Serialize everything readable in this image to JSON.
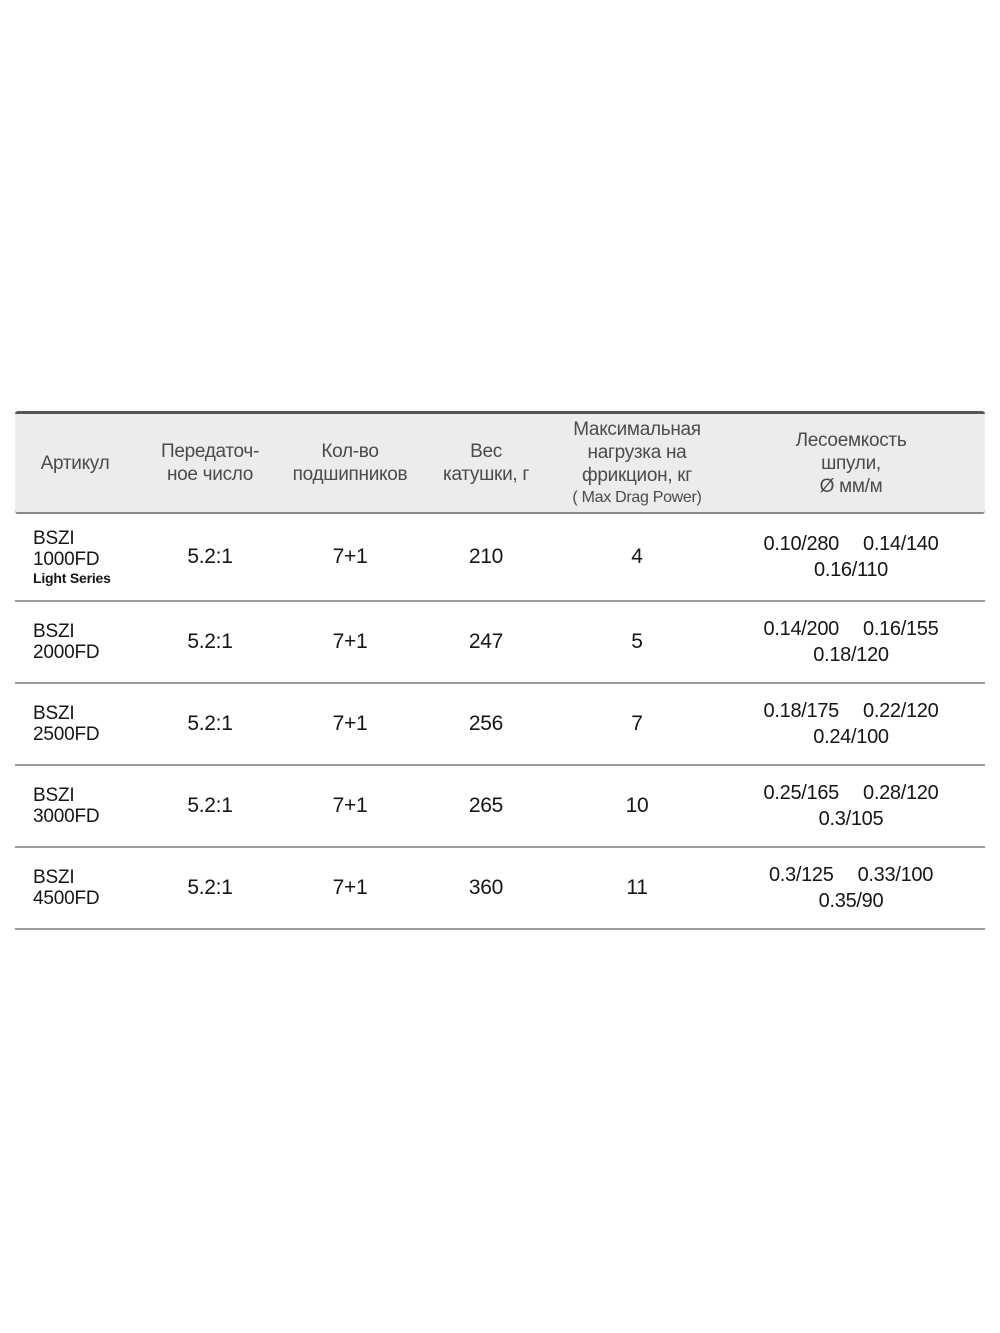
{
  "colors": {
    "page_background": "#ffffff",
    "header_background": "#edecec",
    "header_text": "#4b4b4b",
    "body_text": "#161616",
    "table_top_border": "#55555a",
    "header_bottom_border": "#8a8a8a",
    "row_separator": "#9d9d9d"
  },
  "table": {
    "header": {
      "article": [
        "Артикул"
      ],
      "gear_ratio": [
        "Передаточ-",
        "ное число"
      ],
      "bearings": [
        "Кол-во",
        "подшипников"
      ],
      "weight": [
        "Вес",
        "катушки, г"
      ],
      "max_drag": [
        "Максимальная",
        "нагрузка на",
        "фрикцион, кг"
      ],
      "max_drag_sub": "( Max Drag Power)",
      "capacity": [
        "Лесоемкость",
        "шпули,",
        "Ø мм/м"
      ]
    },
    "rows": [
      {
        "article": [
          "BSZI",
          "1000FD"
        ],
        "note": "Light Series",
        "gear_ratio": "5.2:1",
        "bearings": "7+1",
        "weight": "210",
        "max_drag": "4",
        "capacity_line1": [
          "0.10/280",
          "0.14/140"
        ],
        "capacity_line2": "0.16/110"
      },
      {
        "article": [
          "BSZI",
          "2000FD"
        ],
        "note": "",
        "gear_ratio": "5.2:1",
        "bearings": "7+1",
        "weight": "247",
        "max_drag": "5",
        "capacity_line1": [
          "0.14/200",
          "0.16/155"
        ],
        "capacity_line2": "0.18/120"
      },
      {
        "article": [
          "BSZI",
          "2500FD"
        ],
        "note": "",
        "gear_ratio": "5.2:1",
        "bearings": "7+1",
        "weight": "256",
        "max_drag": "7",
        "capacity_line1": [
          "0.18/175",
          "0.22/120"
        ],
        "capacity_line2": "0.24/100"
      },
      {
        "article": [
          "BSZI",
          "3000FD"
        ],
        "note": "",
        "gear_ratio": "5.2:1",
        "bearings": "7+1",
        "weight": "265",
        "max_drag": "10",
        "capacity_line1": [
          "0.25/165",
          "0.28/120"
        ],
        "capacity_line2": "0.3/105"
      },
      {
        "article": [
          "BSZI",
          "4500FD"
        ],
        "note": "",
        "gear_ratio": "5.2:1",
        "bearings": "7+1",
        "weight": "360",
        "max_drag": "11",
        "capacity_line1": [
          "0.3/125",
          "0.33/100"
        ],
        "capacity_line2": "0.35/90"
      }
    ]
  }
}
